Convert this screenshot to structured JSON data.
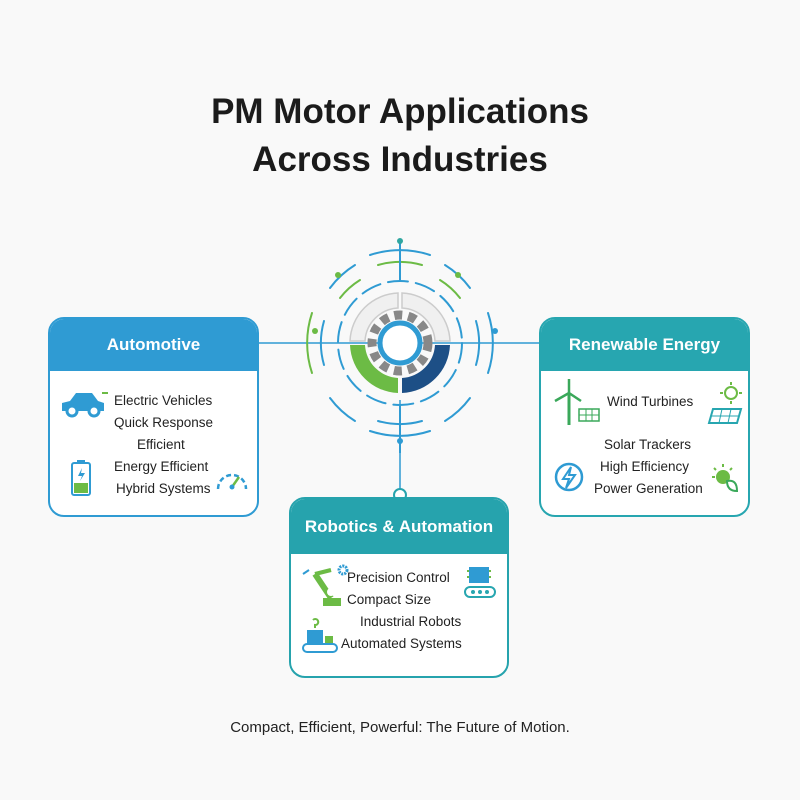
{
  "title_line1": "PM Motor Applications",
  "title_line2": "Across Industries",
  "colors": {
    "automotive": "#2f9bd3",
    "renewable": "#27a6b0",
    "robotics": "#26a3ad",
    "green": "#6cbb45",
    "navy": "#1d4f86"
  },
  "automotive": {
    "title": "Automotive",
    "items": [
      "Electric Vehicles",
      "Quick Response",
      "Efficient",
      "Energy Efficient",
      "Hybrid Systems"
    ]
  },
  "renewable": {
    "title": "Renewable Energy",
    "items": [
      "Wind Turbines",
      "Solar Trackers",
      "High Efficiency",
      "Power Generation"
    ]
  },
  "robotics": {
    "title": "Robotics & Automation",
    "items": [
      "Precision Control",
      "Compact Size",
      "Industrial Robots",
      "Automated Systems"
    ]
  },
  "caption": "Compact, Efficient, Powerful: The Future of Motion."
}
